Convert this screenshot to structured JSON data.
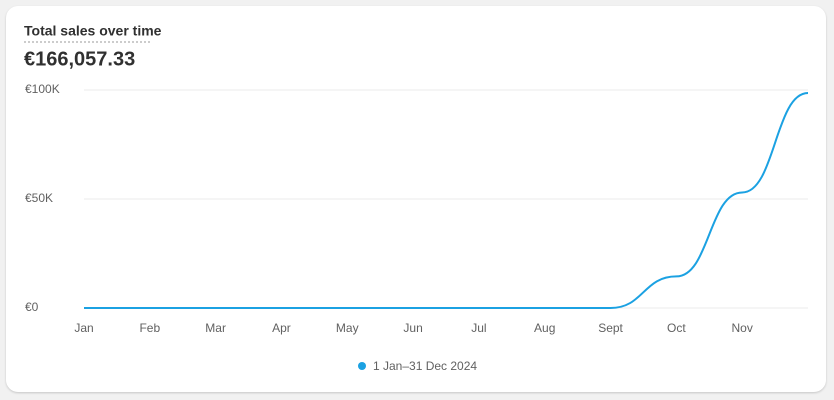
{
  "chart_data": {
    "type": "line",
    "title": "Total sales over time",
    "subtitle": "€166,057.33",
    "categories": [
      "Jan",
      "Feb",
      "Mar",
      "Apr",
      "May",
      "Jun",
      "Jul",
      "Aug",
      "Sept",
      "Oct",
      "Nov",
      null
    ],
    "series": [
      {
        "name": "1 Jan–31 Dec 2024",
        "color": "#1ba1e2",
        "values": [
          0,
          0,
          0,
          0,
          0,
          0,
          0,
          0,
          0,
          14500,
          53000,
          98600
        ]
      }
    ],
    "ylim": [
      0,
      100000
    ],
    "yticks": [
      {
        "value": 0,
        "label": "€0"
      },
      {
        "value": 50000,
        "label": "€50K"
      },
      {
        "value": 100000,
        "label": "€100K"
      }
    ],
    "grid": true
  }
}
